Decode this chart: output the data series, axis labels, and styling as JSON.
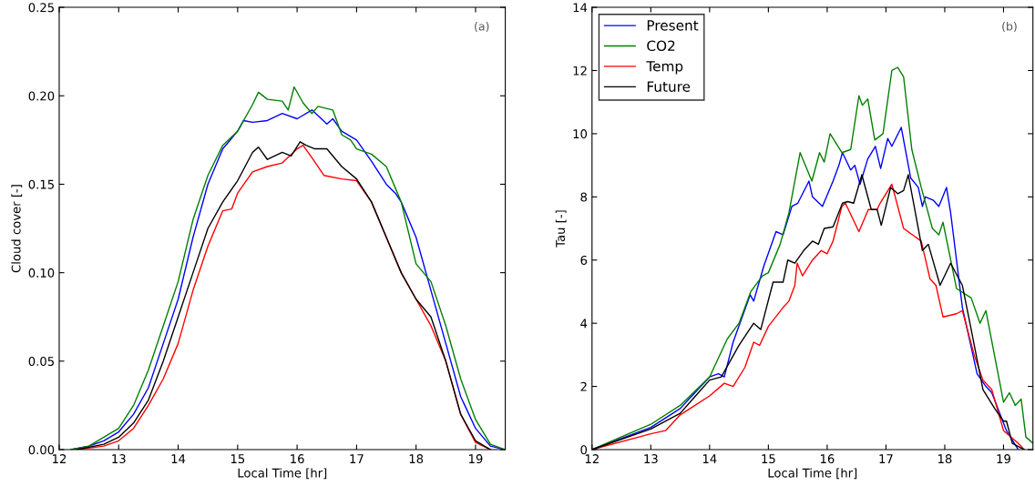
{
  "chart_data": [
    {
      "type": "line",
      "xlabel": "Local Time [hr]",
      "ylabel": "Cloud cover [-]",
      "annotations": [
        "(a)"
      ],
      "xlim": [
        12,
        19.5
      ],
      "ylim": [
        0,
        0.25
      ],
      "xticks": [
        12,
        13,
        14,
        15,
        16,
        17,
        18,
        19
      ],
      "yticks": [
        {
          "value": 0,
          "label": "0.00"
        },
        {
          "value": 0.05,
          "label": "0.05"
        },
        {
          "value": 0.1,
          "label": "0.10"
        },
        {
          "value": 0.15,
          "label": "0.15"
        },
        {
          "value": 0.2,
          "label": "0.20"
        },
        {
          "value": 0.25,
          "label": "0.25"
        }
      ],
      "grid": false,
      "legend": false,
      "series": [
        {
          "color": "#0000ff",
          "x": [
            12.2,
            12.5,
            12.75,
            13,
            13.25,
            13.5,
            13.75,
            14,
            14.25,
            14.5,
            14.75,
            15,
            15.1,
            15.25,
            15.5,
            15.75,
            16,
            16.25,
            16.5,
            16.6,
            16.75,
            17,
            17.25,
            17.5,
            17.65,
            17.75,
            18,
            18.25,
            18.5,
            18.75,
            19,
            19.25,
            19.5
          ],
          "values": [
            0,
            0.002,
            0.005,
            0.01,
            0.02,
            0.035,
            0.06,
            0.085,
            0.12,
            0.15,
            0.17,
            0.18,
            0.186,
            0.185,
            0.186,
            0.19,
            0.187,
            0.192,
            0.184,
            0.187,
            0.18,
            0.175,
            0.163,
            0.15,
            0.145,
            0.14,
            0.12,
            0.09,
            0.06,
            0.03,
            0.012,
            0.002,
            0
          ]
        },
        {
          "color": "#008000",
          "x": [
            12.2,
            12.5,
            13,
            13.25,
            13.5,
            13.75,
            14,
            14.25,
            14.5,
            14.75,
            15,
            15.25,
            15.35,
            15.5,
            15.75,
            15.85,
            15.95,
            16.1,
            16.25,
            16.35,
            16.6,
            16.75,
            16.9,
            17,
            17.25,
            17.5,
            17.75,
            18,
            18.25,
            18.5,
            18.75,
            19,
            19.25,
            19.5
          ],
          "values": [
            0,
            0.002,
            0.012,
            0.025,
            0.045,
            0.07,
            0.095,
            0.13,
            0.155,
            0.172,
            0.18,
            0.195,
            0.202,
            0.198,
            0.197,
            0.192,
            0.205,
            0.196,
            0.19,
            0.194,
            0.192,
            0.178,
            0.175,
            0.17,
            0.167,
            0.16,
            0.14,
            0.105,
            0.095,
            0.07,
            0.04,
            0.017,
            0.003,
            0
          ]
        },
        {
          "color": "#ff0000",
          "x": [
            12.3,
            12.75,
            13,
            13.25,
            13.5,
            13.75,
            14,
            14.25,
            14.5,
            14.75,
            14.9,
            15,
            15.25,
            15.5,
            15.75,
            16,
            16.1,
            16.25,
            16.45,
            16.75,
            17,
            17.25,
            17.5,
            17.75,
            18,
            18.25,
            18.5,
            18.75,
            19,
            19.25
          ],
          "values": [
            0,
            0.002,
            0.005,
            0.012,
            0.025,
            0.04,
            0.06,
            0.09,
            0.115,
            0.135,
            0.136,
            0.145,
            0.157,
            0.16,
            0.162,
            0.17,
            0.172,
            0.165,
            0.155,
            0.153,
            0.152,
            0.14,
            0.12,
            0.1,
            0.085,
            0.07,
            0.05,
            0.02,
            0.004,
            0
          ]
        },
        {
          "color": "#000000",
          "x": [
            12.3,
            12.75,
            13,
            13.25,
            13.5,
            13.75,
            14,
            14.25,
            14.5,
            14.75,
            15,
            15.25,
            15.35,
            15.5,
            15.75,
            15.9,
            16.05,
            16.15,
            16.3,
            16.5,
            16.75,
            17,
            17.25,
            17.5,
            17.75,
            18,
            18.25,
            18.5,
            18.75,
            19,
            19.25
          ],
          "values": [
            0,
            0.003,
            0.007,
            0.015,
            0.028,
            0.05,
            0.075,
            0.1,
            0.125,
            0.14,
            0.152,
            0.168,
            0.171,
            0.164,
            0.168,
            0.166,
            0.174,
            0.172,
            0.17,
            0.17,
            0.16,
            0.153,
            0.14,
            0.12,
            0.1,
            0.085,
            0.075,
            0.05,
            0.02,
            0.005,
            0
          ]
        }
      ]
    },
    {
      "type": "line",
      "xlabel": "Local Time [hr]",
      "ylabel": "Tau [-]",
      "annotations": [
        "(b)"
      ],
      "xlim": [
        12,
        19.5
      ],
      "ylim": [
        0,
        14
      ],
      "xticks": [
        12,
        13,
        14,
        15,
        16,
        17,
        18,
        19
      ],
      "yticks": [
        0,
        2,
        4,
        6,
        8,
        10,
        12,
        14
      ],
      "grid": false,
      "legend": "top left",
      "series": [
        {
          "name": "Present",
          "color": "#0000ff",
          "x": [
            12,
            13,
            13.5,
            14,
            14.15,
            14.25,
            14.4,
            14.69,
            14.75,
            14.92,
            15.13,
            15.25,
            15.4,
            15.5,
            15.69,
            15.75,
            15.92,
            16.1,
            16.2,
            16.26,
            16.4,
            16.47,
            16.56,
            16.69,
            16.82,
            16.91,
            17.03,
            17.1,
            17.26,
            17.42,
            17.55,
            17.62,
            17.67,
            17.8,
            17.9,
            18.03,
            18.1,
            18.3,
            18.55,
            18.7,
            18.8,
            19.05,
            19.25
          ],
          "values": [
            0,
            0.7,
            1.3,
            2.3,
            2.4,
            2.3,
            3.4,
            4.9,
            4.7,
            5.8,
            6.9,
            6.8,
            7.7,
            7.8,
            8.5,
            8.0,
            7.7,
            8.5,
            9.0,
            9.4,
            8.85,
            9.0,
            8.4,
            9.2,
            9.6,
            8.9,
            9.85,
            9.6,
            10.2,
            8.6,
            8.3,
            7.7,
            8.0,
            7.9,
            7.7,
            8.3,
            7.5,
            4.5,
            2.4,
            2.0,
            1.8,
            0.6,
            0
          ]
        },
        {
          "name": "CO2",
          "color": "#008000",
          "x": [
            12,
            13,
            13.5,
            14,
            14.3,
            14.5,
            14.7,
            14.9,
            15,
            15.2,
            15.35,
            15.54,
            15.74,
            15.87,
            15.95,
            16.05,
            16.25,
            16.4,
            16.54,
            16.6,
            16.69,
            16.81,
            16.95,
            17.1,
            17.2,
            17.3,
            17.44,
            17.6,
            17.79,
            17.9,
            17.97,
            18.2,
            18.45,
            18.6,
            18.7,
            19.0,
            19.1,
            19.2,
            19.3,
            19.38,
            19.5
          ],
          "values": [
            0,
            0.8,
            1.4,
            2.3,
            3.5,
            4.0,
            5.0,
            5.5,
            5.6,
            6.5,
            7.5,
            9.4,
            8.5,
            9.4,
            9.1,
            10.0,
            9.4,
            9.5,
            11.2,
            10.9,
            11.1,
            9.8,
            10.0,
            12.0,
            12.1,
            11.8,
            9.5,
            8.3,
            7.0,
            6.8,
            7.2,
            5.1,
            4.8,
            4.0,
            4.4,
            1.5,
            1.8,
            1.4,
            1.6,
            0.4,
            0.2
          ]
        },
        {
          "name": "Temp",
          "color": "#ff0000",
          "x": [
            12,
            13,
            13.25,
            13.5,
            14,
            14.25,
            14.4,
            14.6,
            14.75,
            14.85,
            15,
            15.25,
            15.35,
            15.45,
            15.49,
            15.58,
            15.75,
            15.9,
            16.0,
            16.1,
            16.25,
            16.31,
            16.54,
            16.7,
            16.85,
            16.9,
            17.1,
            17.3,
            17.45,
            17.6,
            17.75,
            17.85,
            17.97,
            18.2,
            18.3,
            18.5,
            18.65,
            18.8,
            19.0,
            19.25,
            19.35
          ],
          "values": [
            0,
            0.5,
            0.6,
            1.1,
            1.7,
            2.1,
            2.0,
            2.6,
            3.4,
            3.3,
            3.9,
            4.5,
            4.7,
            5.2,
            5.9,
            5.5,
            6.0,
            6.3,
            6.2,
            6.6,
            7.7,
            7.8,
            6.9,
            7.6,
            7.6,
            7.8,
            8.4,
            7.0,
            6.8,
            6.6,
            5.4,
            5.2,
            4.2,
            4.3,
            4.4,
            3.0,
            2.2,
            1.9,
            0.6,
            0.2,
            0
          ]
        },
        {
          "name": "Future",
          "color": "#000000",
          "x": [
            12,
            13,
            13.5,
            14,
            14.2,
            14.5,
            14.75,
            14.87,
            15.08,
            15.25,
            15.33,
            15.45,
            15.6,
            15.75,
            15.85,
            15.95,
            16.1,
            16.26,
            16.35,
            16.45,
            16.59,
            16.75,
            16.85,
            16.92,
            17.08,
            17.2,
            17.3,
            17.38,
            17.5,
            17.62,
            17.72,
            17.92,
            18.1,
            18.3,
            18.45,
            18.65,
            18.85,
            19.0,
            19.05,
            19.15,
            19.35
          ],
          "values": [
            0,
            0.65,
            1.15,
            2.2,
            2.3,
            3.3,
            4.0,
            3.8,
            5.3,
            5.3,
            6.0,
            5.9,
            6.3,
            6.6,
            6.5,
            7.0,
            7.05,
            7.8,
            7.85,
            7.8,
            8.7,
            7.6,
            7.6,
            7.1,
            8.3,
            8.1,
            8.2,
            8.7,
            7.5,
            6.3,
            6.5,
            5.2,
            5.9,
            5.2,
            3.8,
            1.9,
            1.3,
            0.9,
            0.9,
            0.2,
            0
          ]
        }
      ]
    }
  ]
}
